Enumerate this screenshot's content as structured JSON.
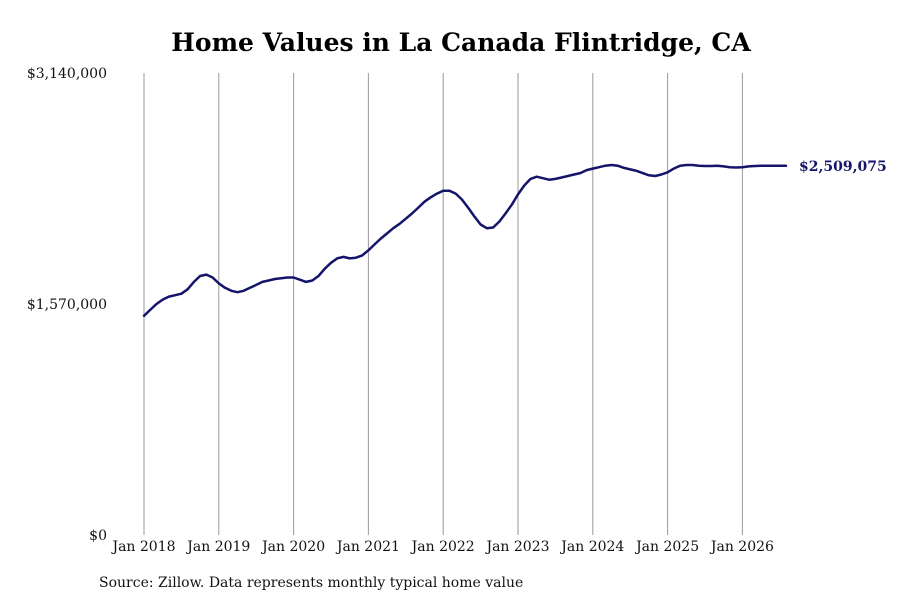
{
  "chart_data": {
    "type": "line",
    "title": "Home Values in La Canada Flintridge, CA",
    "xlabel": "",
    "ylabel": "",
    "ylim": [
      0,
      3140000
    ],
    "y_ticks": [
      0,
      1570000,
      3140000
    ],
    "y_tick_labels": [
      "$0",
      "$1,570,000",
      "$3,140,000"
    ],
    "x_ticks": [
      "2018-01",
      "2019-01",
      "2020-01",
      "2021-01",
      "2022-01",
      "2023-01",
      "2024-01",
      "2025-01",
      "2026-01"
    ],
    "x_tick_labels": [
      "Jan 2018",
      "Jan 2019",
      "Jan 2020",
      "Jan 2021",
      "Jan 2022",
      "Jan 2023",
      "Jan 2024",
      "Jan 2025",
      "Jan 2026"
    ],
    "grid": "vertical lines at each January",
    "line_color": "#14146b",
    "end_label": "$2,509,075",
    "series": [
      {
        "x": [
          "2018-01",
          "2018-02",
          "2018-03",
          "2018-04",
          "2018-05",
          "2018-06",
          "2018-07",
          "2018-08",
          "2018-09",
          "2018-10",
          "2018-11",
          "2018-12",
          "2019-01",
          "2019-02",
          "2019-03",
          "2019-04",
          "2019-05",
          "2019-06",
          "2019-07",
          "2019-08",
          "2019-09",
          "2019-10",
          "2019-11",
          "2019-12",
          "2020-01",
          "2020-02",
          "2020-03",
          "2020-04",
          "2020-05",
          "2020-06",
          "2020-07",
          "2020-08",
          "2020-09",
          "2020-10",
          "2020-11",
          "2020-12",
          "2021-01",
          "2021-02",
          "2021-03",
          "2021-04",
          "2021-05",
          "2021-06",
          "2021-07",
          "2021-08",
          "2021-09",
          "2021-10",
          "2021-11",
          "2021-12",
          "2022-01",
          "2022-02",
          "2022-03",
          "2022-04",
          "2022-05",
          "2022-06",
          "2022-07",
          "2022-08",
          "2022-09",
          "2022-10",
          "2022-11",
          "2022-12",
          "2023-01",
          "2023-02",
          "2023-03",
          "2023-04",
          "2023-05",
          "2023-06",
          "2023-07",
          "2023-08",
          "2023-09",
          "2023-10",
          "2023-11",
          "2023-12",
          "2024-01",
          "2024-02",
          "2024-03",
          "2024-04",
          "2024-05",
          "2024-06",
          "2024-07",
          "2024-08",
          "2024-09",
          "2024-10",
          "2024-11",
          "2024-12",
          "2025-01",
          "2025-02",
          "2025-03",
          "2025-04",
          "2025-05",
          "2025-06",
          "2025-07",
          "2025-08",
          "2025-09",
          "2025-10",
          "2025-11",
          "2025-12",
          "2026-01",
          "2026-02",
          "2026-03",
          "2026-04",
          "2026-05",
          "2026-06",
          "2026-07",
          "2026-08"
        ],
        "y": [
          1490000,
          1530000,
          1570000,
          1600000,
          1620000,
          1630000,
          1640000,
          1670000,
          1720000,
          1760000,
          1770000,
          1750000,
          1710000,
          1680000,
          1660000,
          1650000,
          1660000,
          1680000,
          1700000,
          1720000,
          1730000,
          1740000,
          1745000,
          1750000,
          1750000,
          1735000,
          1720000,
          1730000,
          1760000,
          1810000,
          1850000,
          1880000,
          1890000,
          1880000,
          1885000,
          1900000,
          1935000,
          1975000,
          2015000,
          2050000,
          2085000,
          2115000,
          2150000,
          2185000,
          2225000,
          2265000,
          2295000,
          2320000,
          2340000,
          2340000,
          2320000,
          2280000,
          2225000,
          2165000,
          2110000,
          2085000,
          2090000,
          2130000,
          2185000,
          2245000,
          2315000,
          2375000,
          2420000,
          2435000,
          2425000,
          2415000,
          2420000,
          2430000,
          2440000,
          2450000,
          2460000,
          2480000,
          2490000,
          2500000,
          2510000,
          2515000,
          2510000,
          2495000,
          2485000,
          2475000,
          2460000,
          2445000,
          2440000,
          2450000,
          2465000,
          2490000,
          2510000,
          2515000,
          2515000,
          2510000,
          2508000,
          2508000,
          2509075,
          2505000,
          2500000,
          2498000,
          2500000,
          2505000,
          2508000,
          2509075,
          2509075,
          2509075,
          2509075,
          2509075
        ]
      }
    ]
  },
  "footer": {
    "source": "Source: Zillow. Data represents monthly typical home value"
  }
}
